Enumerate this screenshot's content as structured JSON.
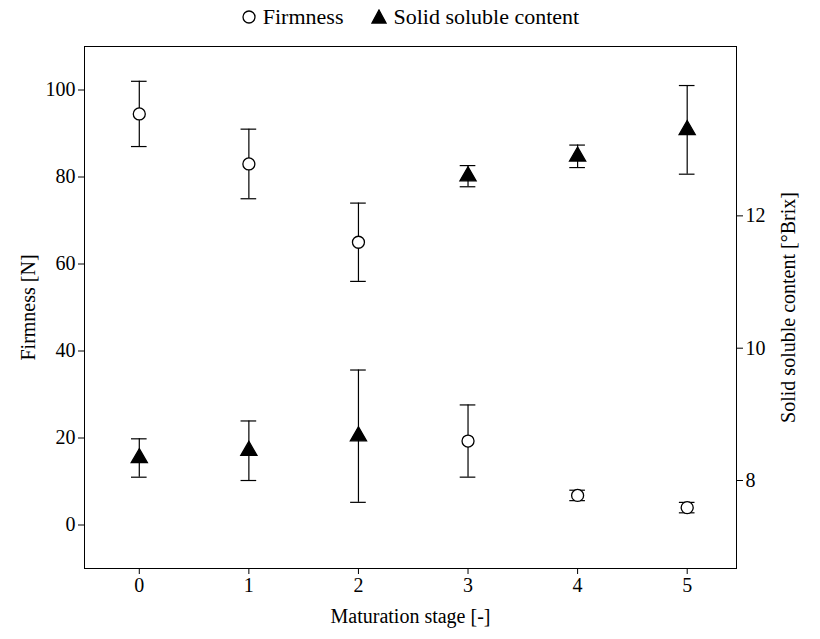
{
  "chart_data": {
    "type": "scatter",
    "x_label": "Maturation stage [-]",
    "y_label": "Firmness [N]",
    "y2_label": "Solid soluble content [°Brix]",
    "x": [
      0,
      1,
      2,
      3,
      4,
      5
    ],
    "xlim": [
      -0.5,
      5.45
    ],
    "xticks": [
      0,
      1,
      2,
      3,
      4,
      5
    ],
    "ylim": [
      -10,
      110
    ],
    "yticks": [
      0,
      20,
      40,
      60,
      80,
      100
    ],
    "y2lim": [
      6.67,
      14.56
    ],
    "y2ticks": [
      8,
      10,
      12
    ],
    "grid": false,
    "legend": "top",
    "series": [
      {
        "name": "Firmness",
        "color": "#000000",
        "marker": "open circle",
        "values": [
          94.5,
          83,
          65,
          19.3,
          6.8,
          4.0
        ],
        "errors": [
          7.5,
          8,
          9,
          8.3,
          1.2,
          1.2
        ]
      },
      {
        "name": "Solid soluble content",
        "axis": "y2",
        "color": "#000000",
        "marker": "triangle",
        "values": [
          8.34,
          8.45,
          8.67,
          12.6,
          12.9,
          13.3
        ],
        "errors": [
          0.29,
          0.45,
          1.0,
          0.16,
          0.17,
          0.67
        ]
      }
    ]
  }
}
